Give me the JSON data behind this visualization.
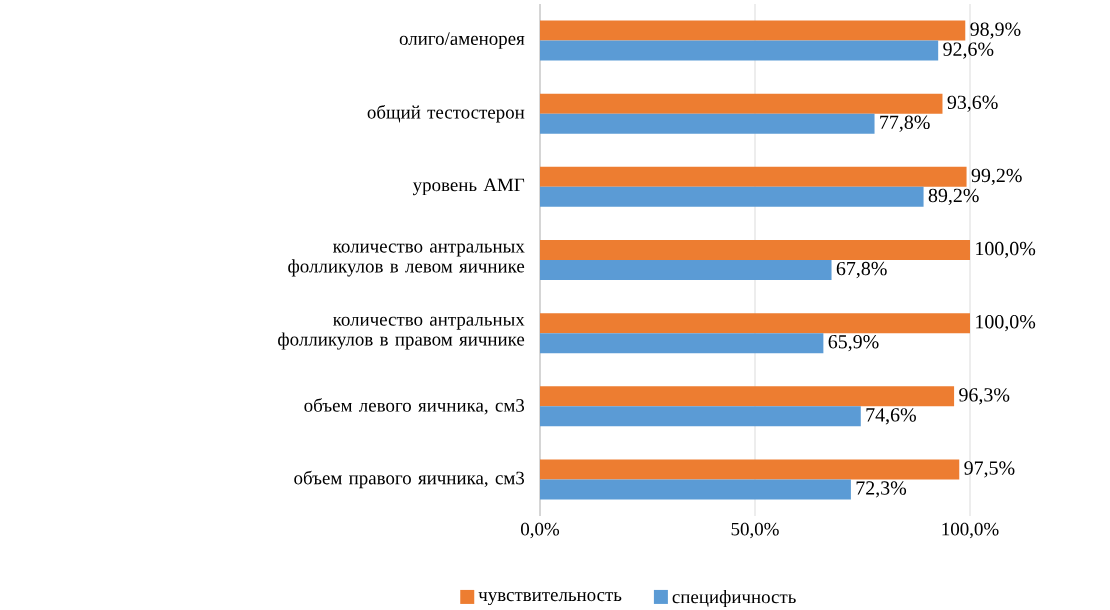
{
  "chart_data": {
    "type": "bar",
    "orientation": "horizontal",
    "categories": [
      "олиго/аменорея",
      "общий тестостерон",
      "уровень АМГ",
      "количество антральных фолликулов в левом яичнике",
      "количество антральных фолликулов в правом яичнике",
      "объем левого яичника, см3",
      "объем правого яичника, см3"
    ],
    "series": [
      {
        "name": "чувствительность",
        "color": "#ed7d31",
        "values": [
          98.9,
          93.6,
          99.2,
          100,
          100,
          96.3,
          97.5
        ],
        "value_labels": [
          "98,9%",
          "93,6%",
          "99,2%",
          "100,0%",
          "100,0%",
          "96,3%",
          "97,5%"
        ]
      },
      {
        "name": "специфичность",
        "color": "#5b9bd5",
        "values": [
          92.6,
          77.8,
          89.2,
          67.8,
          65.9,
          74.6,
          72.3
        ],
        "value_labels": [
          "92,6%",
          "77,8%",
          "89,2%",
          "67,8%",
          "65,9%",
          "74,6%",
          "72,3%"
        ]
      }
    ],
    "xlim": [
      0,
      100
    ],
    "xticks": [
      {
        "value": 0,
        "label": "0,0%"
      },
      {
        "value": 50,
        "label": "50,0%"
      },
      {
        "value": 100,
        "label": "100,0%"
      }
    ],
    "grid": "x",
    "legend": "bottom"
  }
}
